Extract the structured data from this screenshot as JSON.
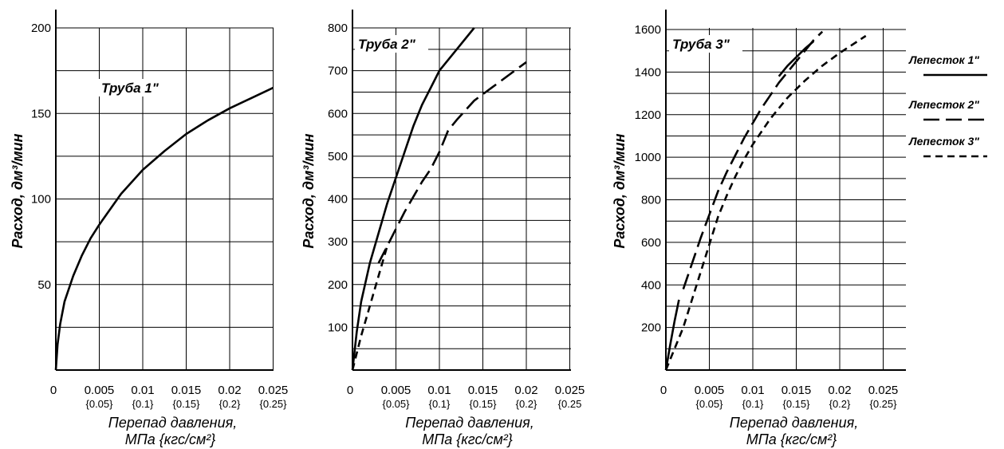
{
  "chart_data": [
    {
      "type": "line",
      "title": "Труба 1\"",
      "ylabel": "Расход, дм³/мин",
      "xlabel_line1": "Перепад давления,",
      "xlabel_line2": "МПа {кгс/см²}",
      "x_ticks": [
        "0",
        "0.005",
        "0.01",
        "0.015",
        "0.02",
        "0.025"
      ],
      "x_ticks_sub": [
        "{0.05}",
        "{0.1}",
        "{0.15}",
        "{0.2}",
        "{0.25}"
      ],
      "y_ticks": [
        "50",
        "100",
        "150",
        "200"
      ],
      "xlim": [
        0,
        0.025
      ],
      "ylim": [
        0,
        200
      ],
      "grid": true,
      "series": [
        {
          "name": "Лепесток 1\"",
          "x": [
            0,
            0.0002,
            0.0005,
            0.001,
            0.002,
            0.003,
            0.004,
            0.005,
            0.0075,
            0.01,
            0.0125,
            0.015,
            0.0175,
            0.02,
            0.0225,
            0.025
          ],
          "y": [
            0,
            15,
            27,
            40,
            55,
            67,
            77,
            85,
            103,
            117,
            128,
            138,
            146,
            153,
            159,
            165
          ]
        }
      ]
    },
    {
      "type": "line",
      "title": "Труба 2\"",
      "ylabel": "Расход, дм³/мин",
      "xlabel_line1": "Перепад давления,",
      "xlabel_line2": "МПа {кгс/см²}",
      "x_ticks": [
        "0",
        "0.005",
        "0.01",
        "0.015",
        "0.02",
        "0.025"
      ],
      "x_ticks_sub": [
        "{0.05}",
        "{0.1}",
        "{0.15}",
        "{0.2}",
        "{0.25"
      ],
      "y_ticks": [
        "100",
        "200",
        "300",
        "400",
        "500",
        "600",
        "700",
        "800"
      ],
      "xlim": [
        0,
        0.025
      ],
      "ylim": [
        0,
        800
      ],
      "grid": true,
      "series": [
        {
          "name": "Лепесток 1\"",
          "x": [
            0,
            0.0005,
            0.001,
            0.002,
            0.003,
            0.004,
            0.005,
            0.006,
            0.007,
            0.008,
            0.009,
            0.01,
            0.012,
            0.014
          ],
          "y": [
            0,
            90,
            160,
            250,
            320,
            390,
            450,
            510,
            570,
            620,
            660,
            700,
            750,
            800
          ]
        },
        {
          "name": "Лепесток 2\"",
          "x": [
            0.003,
            0.004,
            0.005,
            0.006,
            0.007,
            0.008,
            0.009,
            0.01,
            0.011,
            0.012,
            0.014,
            0.016,
            0.018,
            0.02
          ],
          "y": [
            250,
            290,
            330,
            370,
            405,
            440,
            470,
            510,
            560,
            585,
            630,
            660,
            690,
            720
          ]
        },
        {
          "name": "Лепесток 3\"",
          "x": [
            0,
            0.001,
            0.002,
            0.003,
            0.004
          ],
          "y": [
            0,
            80,
            150,
            220,
            290
          ]
        }
      ]
    },
    {
      "type": "line",
      "title": "Труба 3\"",
      "ylabel": "Расход, дм³/мин",
      "xlabel_line1": "Перепад давления,",
      "xlabel_line2": "МПа {кгс/см²}",
      "x_ticks": [
        "0",
        "0.005",
        "0.01",
        "0.015",
        "0.02",
        "0.025"
      ],
      "x_ticks_sub": [
        "{0.05}",
        "{0.1}",
        "{0.15}",
        "{0.2}",
        "{0.25}"
      ],
      "y_ticks": [
        "200",
        "400",
        "600",
        "800",
        "1000",
        "1200",
        "1400",
        "1600"
      ],
      "xlim": [
        0,
        0.027
      ],
      "ylim": [
        0,
        1650
      ],
      "grid": true,
      "series": [
        {
          "name": "Лепесток 1\"",
          "x": [
            0.013,
            0.014,
            0.015,
            0.016,
            0.017
          ],
          "y": [
            1380,
            1430,
            1470,
            1510,
            1545
          ]
        },
        {
          "name": "Лепесток 2\"",
          "x": [
            0.002,
            0.003,
            0.004,
            0.005,
            0.006,
            0.007,
            0.008,
            0.009,
            0.01,
            0.011,
            0.012,
            0.013,
            0.014,
            0.015,
            0.016,
            0.017,
            0.018
          ],
          "y": [
            380,
            500,
            620,
            730,
            840,
            930,
            1010,
            1090,
            1160,
            1230,
            1290,
            1350,
            1400,
            1450,
            1500,
            1550,
            1590
          ]
        },
        {
          "name": "Лепесток 3\"",
          "x": [
            0,
            0.001,
            0.002,
            0.003,
            0.004,
            0.005,
            0.006,
            0.007,
            0.008,
            0.009,
            0.01,
            0.012,
            0.014,
            0.016,
            0.018,
            0.02,
            0.023
          ],
          "y": [
            0,
            100,
            200,
            330,
            460,
            590,
            720,
            820,
            910,
            990,
            1060,
            1180,
            1280,
            1360,
            1430,
            1490,
            1570
          ]
        },
        {
          "name": "Лепесток 1\" (start)",
          "x": [
            0,
            0.0005,
            0.001,
            0.0015
          ],
          "y": [
            0,
            120,
            230,
            330
          ]
        }
      ]
    }
  ],
  "legend": [
    {
      "label": "Лепесток 1\"",
      "style": "solid"
    },
    {
      "label": "Лепесток 2\"",
      "style": "long-dash"
    },
    {
      "label": "Лепесток 3\"",
      "style": "short-dash"
    }
  ]
}
